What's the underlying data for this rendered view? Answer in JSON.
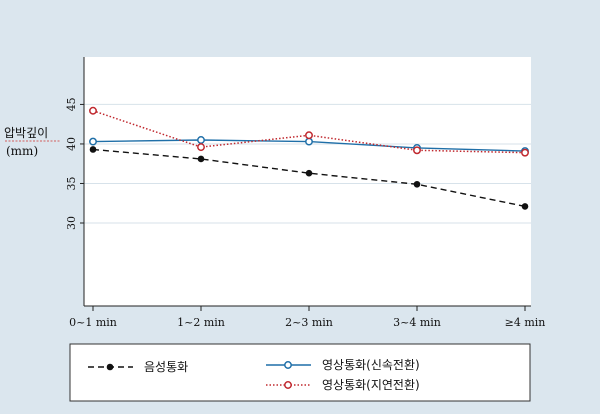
{
  "chart_data": {
    "type": "line",
    "ylabel_line1": "압박깊이",
    "ylabel_line2": "(mm)",
    "categories": [
      "0~1 min",
      "1~2 min",
      "2~3 min",
      "3~4 min",
      "≥4 min"
    ],
    "y_ticks": [
      30,
      35,
      40,
      45
    ],
    "ylim": [
      19.5,
      51
    ],
    "grid": true,
    "legend_position": "bottom",
    "series": [
      {
        "name": "음성통화",
        "values": [
          39.3,
          38.1,
          36.3,
          34.9,
          32.1
        ],
        "color": "#111111",
        "style": "dashed",
        "marker": "filled-circle"
      },
      {
        "name": "영상통화(신속전환)",
        "values": [
          40.3,
          40.5,
          40.3,
          39.5,
          39.1
        ],
        "color": "#1f6fa8",
        "style": "solid",
        "marker": "hollow-circle"
      },
      {
        "name": "영상통화(지연전환)",
        "values": [
          44.2,
          39.6,
          41.1,
          39.2,
          38.9
        ],
        "color": "#c0282e",
        "style": "dotted",
        "marker": "hollow-circle"
      }
    ]
  }
}
